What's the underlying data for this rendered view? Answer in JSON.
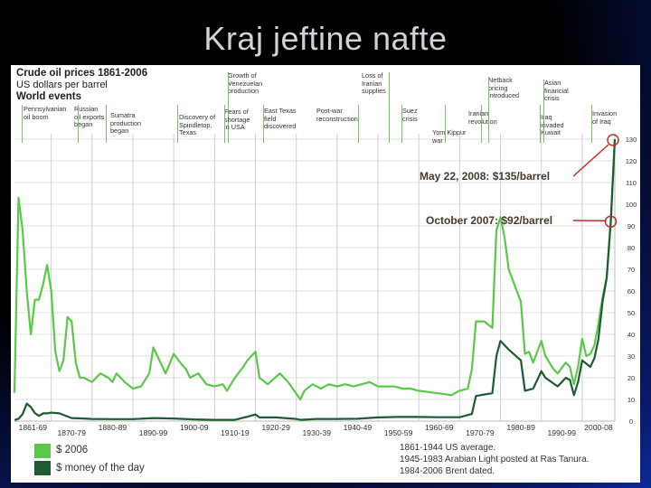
{
  "slide": {
    "title": "Kraj jeftine nafte"
  },
  "header": {
    "title": "Crude oil prices 1861-2006",
    "subtitle": "US dollars per barrel",
    "events_label": "World events"
  },
  "events": [
    {
      "lines": [
        "Pennsylvanian",
        "oil boom"
      ]
    },
    {
      "lines": [
        "Russian",
        "oil exports",
        "began"
      ]
    },
    {
      "lines": [
        "Sumatra",
        "production",
        "began"
      ]
    },
    {
      "lines": [
        "Discovery of",
        "Spindletop,",
        "Texas"
      ]
    },
    {
      "lines": [
        "Growth of",
        "Venezuelan",
        "production"
      ]
    },
    {
      "lines": [
        "Fears of",
        "shortage",
        "in USA"
      ]
    },
    {
      "lines": [
        "East Texas",
        "field",
        "discovered"
      ]
    },
    {
      "lines": [
        "Post-war",
        "reconstruction"
      ]
    },
    {
      "lines": [
        "Loss of",
        "Iranian",
        "supplies"
      ]
    },
    {
      "lines": [
        "Suez",
        "crisis"
      ]
    },
    {
      "lines": [
        "Yom Kippur",
        "war"
      ]
    },
    {
      "lines": [
        "Iranian",
        "revolution"
      ]
    },
    {
      "lines": [
        "Netback",
        "pricing",
        "introduced"
      ]
    },
    {
      "lines": [
        "Iraq",
        "invaded",
        "Kuwait"
      ]
    },
    {
      "lines": [
        "Asian",
        "financial",
        "crisis"
      ]
    },
    {
      "lines": [
        "Invasion",
        "of Iraq"
      ]
    }
  ],
  "callouts": {
    "may2008": "May 22, 2008: $135/barrel",
    "oct2007": "October 2007: $92/barrel"
  },
  "legend": [
    {
      "label": "$ 2006",
      "color": "#5cc84a"
    },
    {
      "label": "$ money of the day",
      "color": "#1e5a32"
    }
  ],
  "notes": [
    "1861-1944 US average.",
    "1945-1983 Arabian Light posted at Ras Tanura.",
    "1984-2006 Brent dated."
  ],
  "colors": {
    "real": "#5cc84a",
    "nominal": "#1e5a32",
    "event_line": "#7fbf6e",
    "callout_ring": "#c0302a"
  },
  "chart_data": {
    "type": "line",
    "title": "Crude oil prices 1861-2006",
    "ylabel": "US dollars per barrel",
    "ylim": [
      0,
      130
    ],
    "yticks": [
      0,
      10,
      20,
      30,
      40,
      50,
      60,
      70,
      80,
      90,
      100,
      110,
      120,
      130
    ],
    "x_range": [
      1861,
      2008
    ],
    "xtick_labels": [
      "1861-69",
      "1870-79",
      "1880-89",
      "1890-99",
      "1900-09",
      "1910-19",
      "1920-29",
      "1930-39",
      "1940-49",
      "1950-59",
      "1960-69",
      "1970-79",
      "1980-89",
      "1990-99",
      "2000-08"
    ],
    "grid": true,
    "legend_position": "bottom-left",
    "series": [
      {
        "name": "$ 2006",
        "x": [
          1861,
          1862,
          1863,
          1864,
          1865,
          1866,
          1867,
          1868,
          1869,
          1870,
          1871,
          1872,
          1873,
          1874,
          1875,
          1876,
          1877,
          1878,
          1879,
          1880,
          1882,
          1884,
          1885,
          1886,
          1888,
          1890,
          1892,
          1894,
          1895,
          1896,
          1898,
          1900,
          1902,
          1903,
          1904,
          1906,
          1908,
          1910,
          1912,
          1913,
          1915,
          1917,
          1918,
          1920,
          1921,
          1923,
          1926,
          1928,
          1931,
          1932,
          1934,
          1936,
          1938,
          1940,
          1942,
          1944,
          1946,
          1948,
          1950,
          1952,
          1954,
          1956,
          1958,
          1960,
          1964,
          1968,
          1970,
          1972,
          1973,
          1974,
          1976,
          1978,
          1979,
          1980,
          1981,
          1982,
          1984,
          1985,
          1986,
          1987,
          1988,
          1990,
          1991,
          1993,
          1994,
          1996,
          1997,
          1998,
          1999,
          2000,
          2001,
          2002,
          2003,
          2004,
          2005,
          2006,
          2007,
          2008
        ],
        "y": [
          13,
          103,
          88,
          60,
          40,
          56,
          56,
          63,
          72,
          60,
          32,
          23,
          28,
          48,
          46,
          27,
          20,
          20,
          19,
          18,
          22,
          20,
          18,
          22,
          18,
          15,
          16,
          22,
          34,
          30,
          22,
          31,
          26,
          24,
          20,
          22,
          17,
          16,
          17,
          14,
          20,
          25,
          28,
          32,
          20,
          17,
          22,
          18,
          10,
          14,
          17,
          15,
          17,
          16,
          17,
          16,
          17,
          18,
          16,
          16,
          16,
          15,
          15,
          14,
          13,
          12,
          14,
          15,
          24,
          46,
          46,
          43,
          88,
          94,
          85,
          70,
          60,
          55,
          31,
          32,
          27,
          37,
          30,
          24,
          22,
          27,
          25,
          17,
          25,
          38,
          30,
          31,
          35,
          45,
          57,
          66,
          92,
          135
        ]
      },
      {
        "name": "$ money of the day",
        "x": [
          1861,
          1862,
          1863,
          1864,
          1865,
          1866,
          1867,
          1868,
          1869,
          1870,
          1872,
          1875,
          1878,
          1880,
          1885,
          1890,
          1895,
          1900,
          1905,
          1910,
          1915,
          1917,
          1918,
          1920,
          1921,
          1925,
          1930,
          1931,
          1935,
          1940,
          1945,
          1950,
          1955,
          1960,
          1965,
          1969,
          1970,
          1973,
          1974,
          1978,
          1979,
          1980,
          1981,
          1982,
          1985,
          1986,
          1988,
          1990,
          1991,
          1994,
          1996,
          1997,
          1998,
          1999,
          2000,
          2002,
          2003,
          2004,
          2005,
          2006,
          2007,
          2008
        ],
        "y": [
          0.5,
          1.1,
          3.2,
          8.1,
          6.5,
          3.7,
          2.4,
          3.6,
          3.6,
          3.9,
          3.6,
          1.4,
          1.2,
          1.0,
          0.9,
          0.9,
          1.4,
          1.2,
          0.8,
          0.6,
          0.6,
          1.6,
          2.0,
          3.1,
          1.7,
          1.7,
          1.0,
          0.6,
          1.0,
          1.0,
          1.1,
          1.7,
          1.9,
          1.9,
          1.8,
          1.8,
          1.8,
          3.3,
          11.6,
          12.9,
          30,
          37,
          35,
          33,
          28,
          14,
          15,
          23,
          20,
          16,
          20,
          19,
          12,
          18,
          28,
          25,
          29,
          38,
          55,
          66,
          92,
          135
        ]
      }
    ],
    "annotations": [
      {
        "text": "May 22, 2008: $135/barrel",
        "x": 2008,
        "y": 135
      },
      {
        "text": "October 2007: $92/barrel",
        "x": 2007,
        "y": 92
      }
    ]
  }
}
